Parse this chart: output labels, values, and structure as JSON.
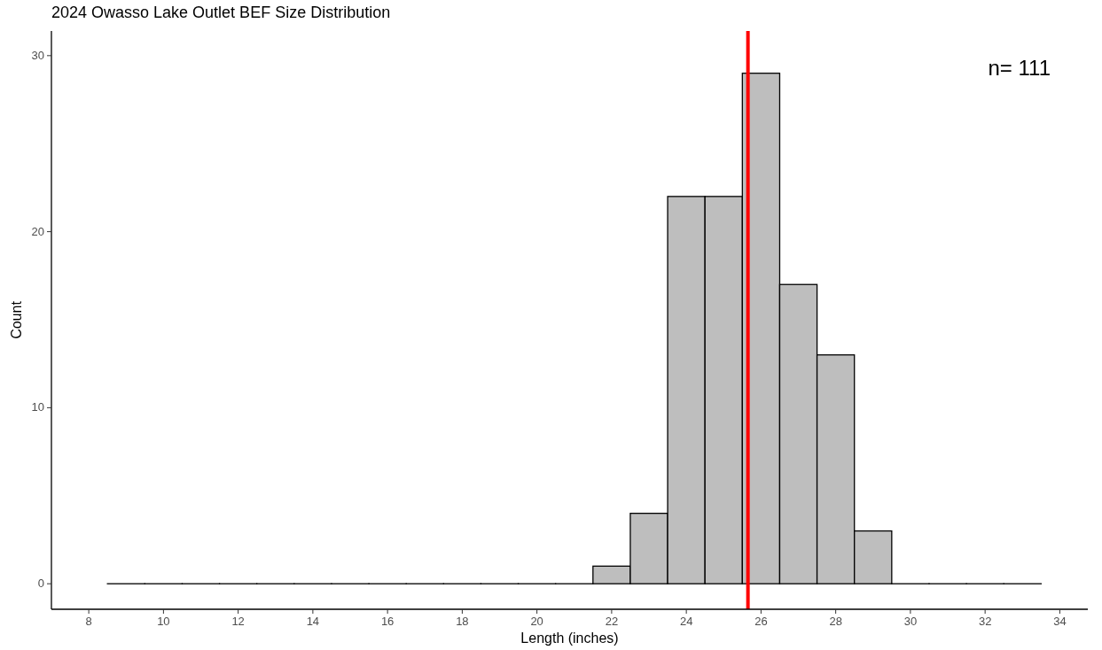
{
  "chart_data": {
    "type": "histogram",
    "title": "2024 Owasso Lake Outlet BEF Size Distribution",
    "xlabel": "Length (inches)",
    "ylabel": "Count",
    "bins": [
      8.5,
      9.5,
      10.5,
      11.5,
      12.5,
      13.5,
      14.5,
      15.5,
      16.5,
      17.5,
      18.5,
      19.5,
      20.5,
      21.5,
      22.5,
      23.5,
      24.5,
      25.5,
      26.5,
      27.5,
      28.5,
      29.5,
      30.5,
      31.5,
      32.5,
      33.5
    ],
    "values": [
      0,
      0,
      0,
      0,
      0,
      0,
      0,
      0,
      0,
      0,
      0,
      0,
      0,
      1,
      4,
      22,
      22,
      29,
      17,
      13,
      3,
      0,
      0,
      0,
      0
    ],
    "color": "#bebebe",
    "xlim": [
      7,
      34.75
    ],
    "ylim": [
      -1.45,
      31.4
    ],
    "xticks": [
      8,
      10,
      12,
      14,
      16,
      18,
      20,
      22,
      24,
      26,
      28,
      30,
      32,
      34
    ],
    "yticks": [
      0,
      10,
      20,
      30
    ],
    "ref_lines": [
      {
        "axis": "x",
        "value": 25.65,
        "color": "#ff0000"
      }
    ],
    "annotations": [
      "n= 111"
    ],
    "grid": false
  }
}
